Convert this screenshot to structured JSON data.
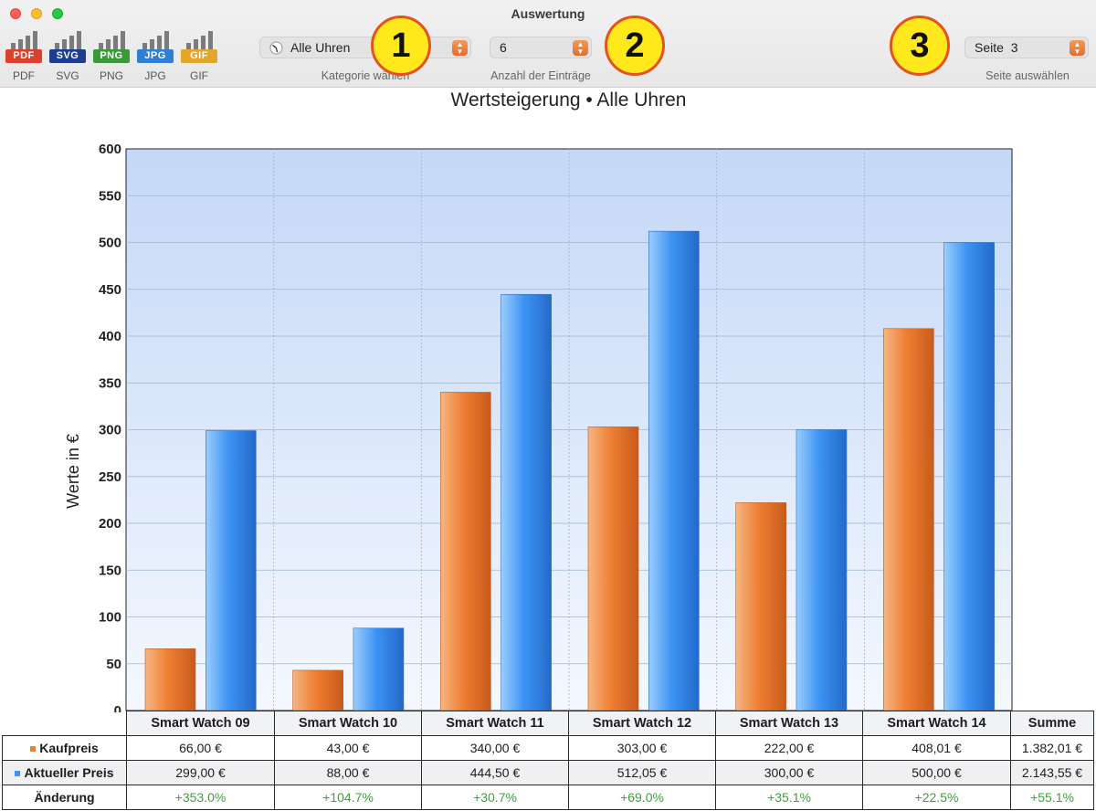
{
  "window": {
    "title": "Auswertung"
  },
  "export_buttons": [
    {
      "tag": "PDF",
      "label": "PDF",
      "color": "#d9412c"
    },
    {
      "tag": "SVG",
      "label": "SVG",
      "color": "#1d3d8f"
    },
    {
      "tag": "PNG",
      "label": "PNG",
      "color": "#3a9a3a"
    },
    {
      "tag": "JPG",
      "label": "JPG",
      "color": "#2f7fd3"
    },
    {
      "tag": "GIF",
      "label": "GIF",
      "color": "#e2a62a"
    }
  ],
  "controls": {
    "category": {
      "value": "Alle Uhren",
      "label": "Kategorie wählen",
      "badge": "1"
    },
    "entries": {
      "value": "6",
      "label": "Anzahl der Einträge",
      "badge": "2"
    },
    "page": {
      "value": "Seite  3",
      "label": "Seite auswählen",
      "badge": "3"
    }
  },
  "chart_data": {
    "type": "bar",
    "title": "Wertsteigerung • Alle Uhren",
    "ylabel": "Werte in €",
    "xlabel": "",
    "ylim": [
      0,
      600
    ],
    "yticks": [
      0,
      50,
      100,
      150,
      200,
      250,
      300,
      350,
      400,
      450,
      500,
      550,
      600
    ],
    "grid": true,
    "categories": [
      "Smart Watch 09",
      "Smart Watch 10",
      "Smart Watch 11",
      "Smart Watch 12",
      "Smart Watch 13",
      "Smart Watch 14"
    ],
    "series": [
      {
        "name": "Kaufpreis",
        "values": [
          66.0,
          43.0,
          340.0,
          303.0,
          222.0,
          408.01
        ],
        "color": "#ee7f33"
      },
      {
        "name": "Aktueller Preis",
        "values": [
          299.0,
          88.0,
          444.5,
          512.05,
          300.0,
          500.0
        ],
        "color": "#3d94f4"
      }
    ]
  },
  "table": {
    "sum_header": "Summe",
    "rows": [
      {
        "label": "Kaufpreis",
        "values": [
          "66,00 €",
          "43,00 €",
          "340,00 €",
          "303,00 €",
          "222,00 €",
          "408,01 €"
        ],
        "sum": "1.382,01 €"
      },
      {
        "label": "Aktueller Preis",
        "values": [
          "299,00 €",
          "88,00 €",
          "444,50 €",
          "512,05 €",
          "300,00 €",
          "500,00 €"
        ],
        "sum": "2.143,55 €"
      },
      {
        "label": "Änderung",
        "values": [
          "+353.0%",
          "+104.7%",
          "+30.7%",
          "+69.0%",
          "+35.1%",
          "+22.5%"
        ],
        "sum": "+55.1%"
      }
    ]
  }
}
